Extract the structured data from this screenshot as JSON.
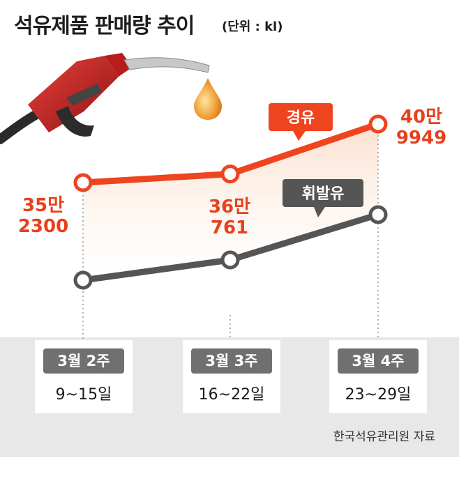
{
  "title": "석유제품 판매량 추이",
  "unit": "(단위 : kl)",
  "source": "한국석유관리원 자료",
  "colors": {
    "diesel": "#ee4420",
    "gasoline": "#555555",
    "label_red": "#e8401c",
    "band": "#e8e8e8"
  },
  "icons": [
    "fuel-nozzle-icon",
    "fuel-drop-icon"
  ],
  "weeks": [
    {
      "label": "3월 2주",
      "range": "9~15일"
    },
    {
      "label": "3월 3주",
      "range": "16~22일"
    },
    {
      "label": "3월 4주",
      "range": "23~29일"
    }
  ],
  "chart_data": {
    "type": "line",
    "categories": [
      "3월 2주",
      "3월 3주",
      "3월 4주"
    ],
    "series": [
      {
        "name": "경유",
        "values": [
          352300,
          360761,
          409949
        ],
        "labels": [
          [
            "35만",
            "2300"
          ],
          [
            "36만",
            "761"
          ],
          [
            "40만",
            "9949"
          ]
        ]
      },
      {
        "name": "휘발유",
        "values": [
          null,
          null,
          null
        ]
      }
    ],
    "grid": false,
    "legend": "inline labels"
  }
}
